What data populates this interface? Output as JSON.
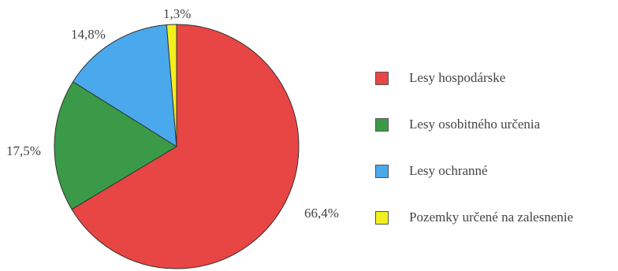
{
  "chart_data": {
    "type": "pie",
    "slices": [
      {
        "label": "Lesy hospodárske",
        "value": 66.4,
        "display": "66,4%",
        "color": "#e84545"
      },
      {
        "label": "Lesy osobitného určenia",
        "value": 17.5,
        "display": "17,5%",
        "color": "#3a9a48"
      },
      {
        "label": "Lesy ochranné",
        "value": 14.8,
        "display": "14,8%",
        "color": "#4aa8ec"
      },
      {
        "label": "Pozemky určené na zalesnenie",
        "value": 1.3,
        "display": "1,3%",
        "color": "#f2ef1e"
      }
    ],
    "start": "12 o'clock",
    "direction": "clockwise",
    "legend_position": "right"
  }
}
